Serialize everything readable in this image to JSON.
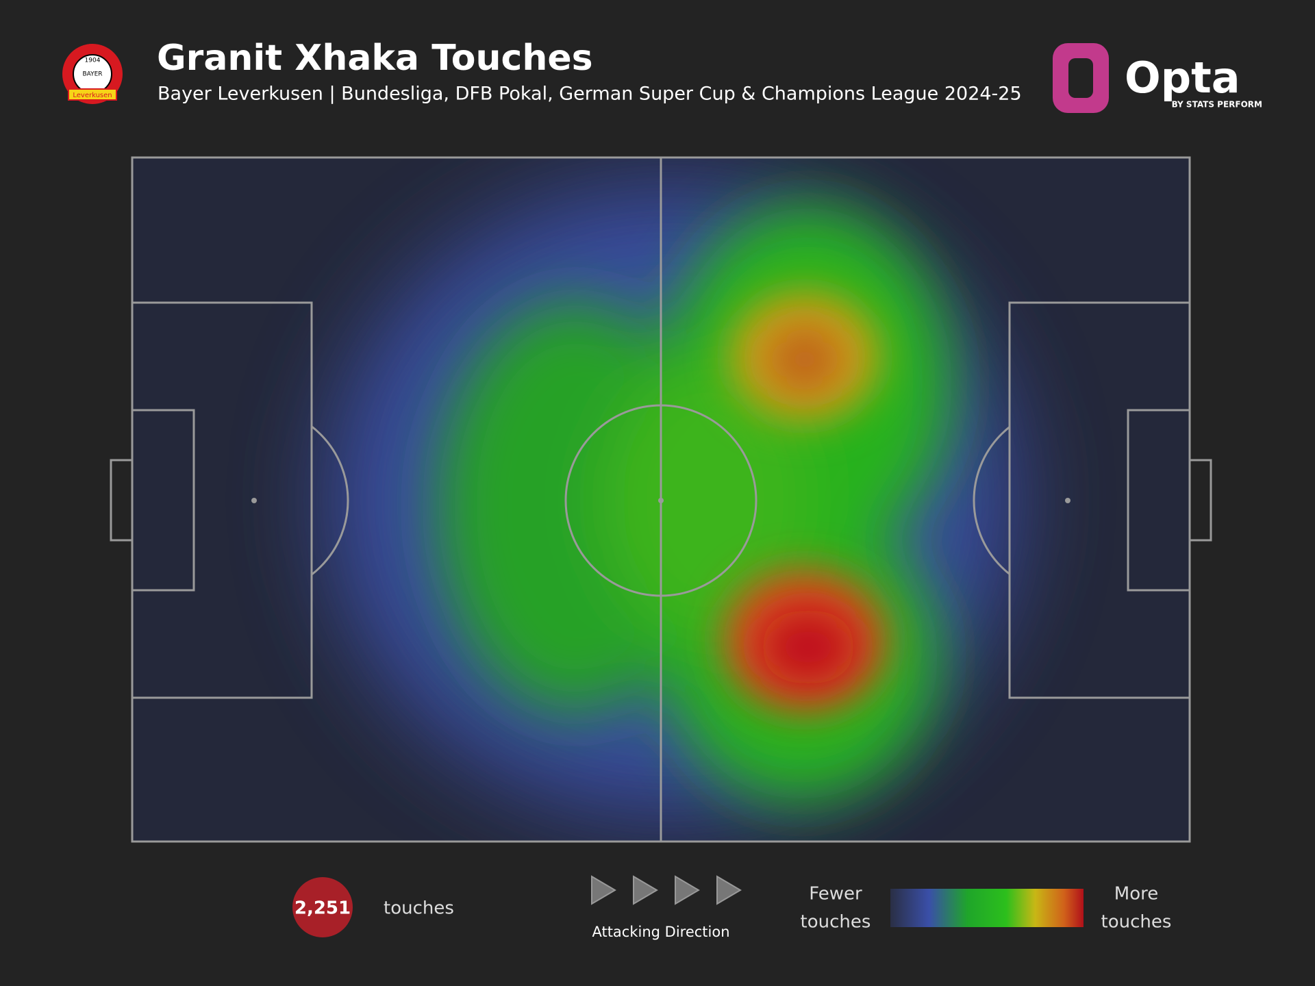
{
  "header": {
    "title": "Granit Xhaka Touches",
    "subtitle": "Bayer Leverkusen | Bundesliga, DFB Pokal, German Super Cup & Champions League 2024-25",
    "badge": {
      "year": "1904",
      "name": "BAYER",
      "city": "Leverkusen"
    }
  },
  "brand": {
    "name": "Opta",
    "tagline": "BY STATS PERFORM"
  },
  "footer": {
    "count": "2,251",
    "count_label": "touches",
    "direction": "Attacking Direction",
    "legend": {
      "low": [
        "Fewer",
        "touches"
      ],
      "high": [
        "More",
        "touches"
      ]
    }
  }
}
